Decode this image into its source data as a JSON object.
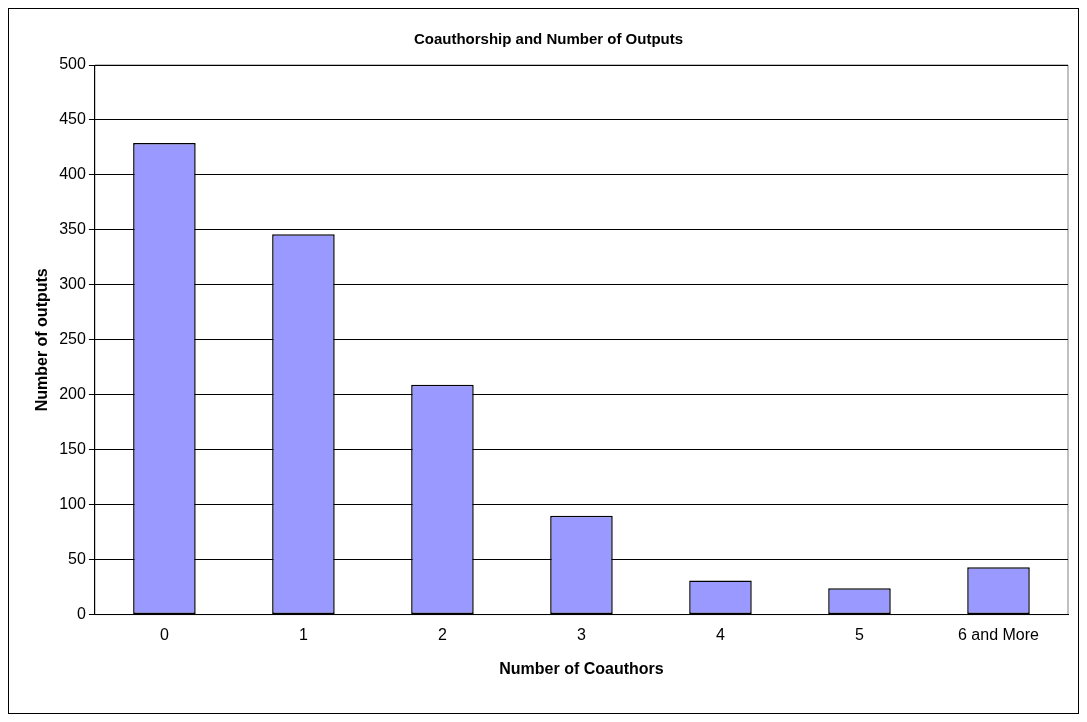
{
  "chart_data": {
    "type": "bar",
    "title": "Coauthorship and Number of Outputs",
    "xlabel": "Number of Coauthors",
    "ylabel": "Number of outputs",
    "categories": [
      "0",
      "1",
      "2",
      "3",
      "4",
      "5",
      "6 and More"
    ],
    "values": [
      429,
      346,
      209,
      90,
      31,
      24,
      43
    ],
    "color": "#9999ff",
    "ylim": [
      0,
      500
    ],
    "yticks": [
      0,
      50,
      100,
      150,
      200,
      250,
      300,
      350,
      400,
      450,
      500
    ],
    "grid": "y",
    "legend": false
  }
}
